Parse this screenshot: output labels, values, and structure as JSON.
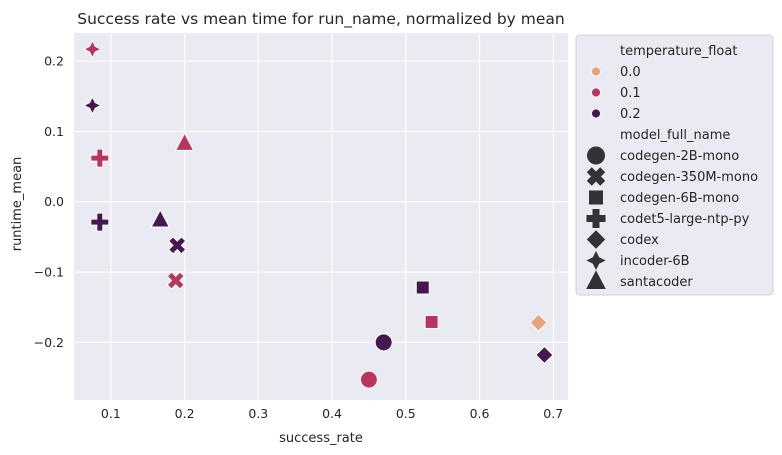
{
  "chart_data": {
    "type": "scatter",
    "title": "Success rate vs mean time for run_name, normalized by mean",
    "xlabel": "success_rate",
    "ylabel": "runtime_mean",
    "xlim": [
      0.05,
      0.72
    ],
    "ylim": [
      -0.282,
      0.24
    ],
    "xticks": [
      0.1,
      0.2,
      0.3,
      0.4,
      0.5,
      0.6,
      0.7
    ],
    "xtick_labels": [
      "0.1",
      "0.2",
      "0.3",
      "0.4",
      "0.5",
      "0.6",
      "0.7"
    ],
    "yticks": [
      0.2,
      0.1,
      0.0,
      -0.1,
      -0.2
    ],
    "ytick_labels": [
      "0.2",
      "0.1",
      "0.0",
      "−0.1",
      "−0.2"
    ],
    "grid": true,
    "background": "#eaeaf2",
    "legend_placement": "outside-right",
    "legend": {
      "hue_title": "temperature_float",
      "hue_entries": [
        {
          "label": "0.0",
          "color": "#e8a27c"
        },
        {
          "label": "0.1",
          "color": "#b8365e"
        },
        {
          "label": "0.2",
          "color": "#45194f"
        }
      ],
      "style_title": "model_full_name",
      "style_entries": [
        {
          "label": "codegen-2B-mono",
          "marker": "circle"
        },
        {
          "label": "codegen-350M-mono",
          "marker": "x"
        },
        {
          "label": "codegen-6B-mono",
          "marker": "square"
        },
        {
          "label": "codet5-large-ntp-py",
          "marker": "plus"
        },
        {
          "label": "codex",
          "marker": "diamond"
        },
        {
          "label": "incoder-6B",
          "marker": "star4"
        },
        {
          "label": "santacoder",
          "marker": "triangle"
        }
      ]
    },
    "points": [
      {
        "model": "incoder-6B",
        "temperature": "0.1",
        "x": 0.075,
        "y": 0.217
      },
      {
        "model": "incoder-6B",
        "temperature": "0.2",
        "x": 0.075,
        "y": 0.137
      },
      {
        "model": "codet5-large-ntp-py",
        "temperature": "0.1",
        "x": 0.085,
        "y": 0.062
      },
      {
        "model": "santacoder",
        "temperature": "0.1",
        "x": 0.2,
        "y": 0.083
      },
      {
        "model": "codet5-large-ntp-py",
        "temperature": "0.2",
        "x": 0.085,
        "y": -0.029
      },
      {
        "model": "santacoder",
        "temperature": "0.2",
        "x": 0.167,
        "y": -0.026
      },
      {
        "model": "codegen-350M-mono",
        "temperature": "0.2",
        "x": 0.19,
        "y": -0.062
      },
      {
        "model": "codegen-350M-mono",
        "temperature": "0.1",
        "x": 0.188,
        "y": -0.112
      },
      {
        "model": "codegen-6B-mono",
        "temperature": "0.2",
        "x": 0.523,
        "y": -0.122
      },
      {
        "model": "codegen-6B-mono",
        "temperature": "0.1",
        "x": 0.535,
        "y": -0.171
      },
      {
        "model": "codex",
        "temperature": "0.0",
        "x": 0.68,
        "y": -0.172
      },
      {
        "model": "codegen-2B-mono",
        "temperature": "0.2",
        "x": 0.47,
        "y": -0.2
      },
      {
        "model": "codex",
        "temperature": "0.2",
        "x": 0.688,
        "y": -0.218
      },
      {
        "model": "codegen-2B-mono",
        "temperature": "0.1",
        "x": 0.45,
        "y": -0.253
      }
    ]
  }
}
